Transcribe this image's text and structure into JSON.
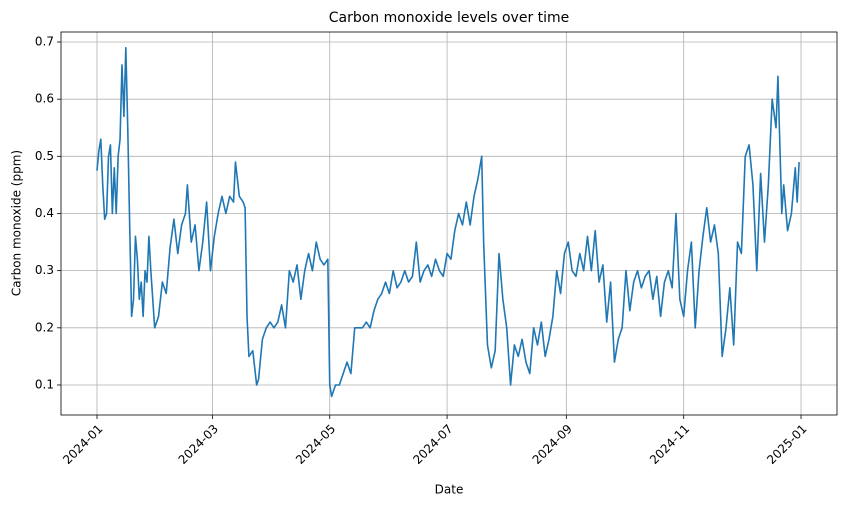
{
  "chart_data": {
    "type": "line",
    "title": "Carbon monoxide levels over time",
    "xlabel": "Date",
    "ylabel": "Carbon monoxide (ppm)",
    "color": "#1f77b4",
    "grid": true,
    "xlim": [
      -18.7,
      384.7
    ],
    "ylim": [
      0.0475,
      0.7175
    ],
    "xticks": [
      {
        "value": 0,
        "label": "2024-01"
      },
      {
        "value": 60,
        "label": "2024-03"
      },
      {
        "value": 121,
        "label": "2024-05"
      },
      {
        "value": 182,
        "label": "2024-07"
      },
      {
        "value": 244,
        "label": "2024-09"
      },
      {
        "value": 305,
        "label": "2024-11"
      },
      {
        "value": 366,
        "label": "2025-01"
      }
    ],
    "yticks": [
      0.1,
      0.2,
      0.3,
      0.4,
      0.5,
      0.6,
      0.7
    ],
    "x": [
      0,
      1,
      2,
      3,
      4,
      5,
      6,
      7,
      8,
      9,
      10,
      11,
      12,
      13,
      14,
      15,
      16,
      17,
      18,
      19,
      20,
      21,
      22,
      23,
      24,
      25,
      26,
      27,
      28,
      30,
      32,
      34,
      36,
      38,
      40,
      42,
      44,
      46,
      47,
      49,
      51,
      53,
      55,
      57,
      59,
      61,
      63,
      65,
      67,
      69,
      71,
      72,
      74,
      76,
      77,
      78,
      79,
      81,
      83,
      84,
      86,
      88,
      90,
      92,
      94,
      96,
      98,
      100,
      102,
      104,
      106,
      108,
      110,
      112,
      114,
      116,
      118,
      120,
      121,
      122,
      124,
      126,
      128,
      130,
      132,
      134,
      136,
      138,
      140,
      142,
      144,
      146,
      148,
      150,
      152,
      154,
      156,
      158,
      160,
      162,
      164,
      166,
      168,
      170,
      172,
      174,
      176,
      178,
      180,
      182,
      184,
      186,
      188,
      190,
      192,
      194,
      196,
      198,
      200,
      201,
      203,
      205,
      207,
      209,
      211,
      213,
      215,
      217,
      219,
      221,
      223,
      225,
      227,
      229,
      231,
      233,
      235,
      237,
      239,
      241,
      243,
      245,
      247,
      249,
      251,
      253,
      255,
      257,
      259,
      261,
      263,
      265,
      267,
      269,
      271,
      273,
      275,
      277,
      279,
      281,
      283,
      285,
      287,
      289,
      291,
      293,
      295,
      297,
      299,
      301,
      303,
      305,
      307,
      309,
      311,
      313,
      315,
      317,
      319,
      321,
      323,
      325,
      327,
      329,
      331,
      333,
      335,
      337,
      339,
      341,
      343,
      345,
      347,
      349,
      351,
      353,
      354,
      356,
      357,
      359,
      361,
      363,
      364,
      365
    ],
    "values": [
      0.475,
      0.51,
      0.53,
      0.45,
      0.39,
      0.4,
      0.5,
      0.52,
      0.4,
      0.48,
      0.4,
      0.5,
      0.53,
      0.66,
      0.57,
      0.69,
      0.55,
      0.38,
      0.22,
      0.25,
      0.36,
      0.32,
      0.25,
      0.28,
      0.22,
      0.3,
      0.28,
      0.36,
      0.3,
      0.2,
      0.22,
      0.28,
      0.26,
      0.34,
      0.39,
      0.33,
      0.38,
      0.4,
      0.45,
      0.35,
      0.38,
      0.3,
      0.35,
      0.42,
      0.3,
      0.36,
      0.4,
      0.43,
      0.4,
      0.43,
      0.42,
      0.49,
      0.43,
      0.42,
      0.41,
      0.22,
      0.15,
      0.16,
      0.1,
      0.11,
      0.18,
      0.2,
      0.21,
      0.2,
      0.21,
      0.24,
      0.2,
      0.3,
      0.28,
      0.31,
      0.25,
      0.3,
      0.33,
      0.3,
      0.35,
      0.32,
      0.31,
      0.32,
      0.1,
      0.08,
      0.1,
      0.1,
      0.12,
      0.14,
      0.12,
      0.2,
      0.2,
      0.2,
      0.21,
      0.2,
      0.23,
      0.25,
      0.26,
      0.28,
      0.26,
      0.3,
      0.27,
      0.28,
      0.3,
      0.28,
      0.29,
      0.35,
      0.28,
      0.3,
      0.31,
      0.29,
      0.32,
      0.3,
      0.29,
      0.33,
      0.32,
      0.37,
      0.4,
      0.38,
      0.42,
      0.38,
      0.43,
      0.46,
      0.5,
      0.35,
      0.17,
      0.13,
      0.16,
      0.33,
      0.25,
      0.2,
      0.1,
      0.17,
      0.15,
      0.18,
      0.14,
      0.12,
      0.2,
      0.17,
      0.21,
      0.15,
      0.18,
      0.22,
      0.3,
      0.26,
      0.33,
      0.35,
      0.3,
      0.29,
      0.33,
      0.3,
      0.36,
      0.3,
      0.37,
      0.28,
      0.31,
      0.21,
      0.28,
      0.14,
      0.18,
      0.2,
      0.3,
      0.23,
      0.28,
      0.3,
      0.27,
      0.29,
      0.3,
      0.25,
      0.29,
      0.22,
      0.28,
      0.3,
      0.27,
      0.4,
      0.25,
      0.22,
      0.3,
      0.35,
      0.2,
      0.3,
      0.36,
      0.41,
      0.35,
      0.38,
      0.33,
      0.15,
      0.2,
      0.27,
      0.17,
      0.35,
      0.33,
      0.5,
      0.52,
      0.45,
      0.3,
      0.47,
      0.35,
      0.45,
      0.6,
      0.55,
      0.64,
      0.4,
      0.45,
      0.37,
      0.4,
      0.48,
      0.42,
      0.49
    ]
  }
}
